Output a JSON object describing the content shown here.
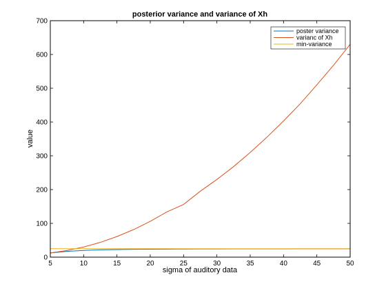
{
  "chart_data": {
    "type": "line",
    "title": "posterior variance and variance of Xh",
    "xlabel": "sigma of auditory data",
    "ylabel": "value",
    "xlim": [
      5,
      50
    ],
    "ylim": [
      0,
      700
    ],
    "xticks": [
      5,
      10,
      15,
      20,
      25,
      30,
      35,
      40,
      45,
      50
    ],
    "yticks": [
      0,
      100,
      200,
      300,
      400,
      500,
      600,
      700
    ],
    "grid": false,
    "legend_position": "top-right",
    "x": [
      5,
      7.5,
      10,
      12.5,
      15,
      17.5,
      20,
      22.5,
      25,
      27.5,
      30,
      32.5,
      35,
      37.5,
      40,
      42.5,
      45,
      47.5,
      50
    ],
    "series": [
      {
        "name": "poster variance",
        "color": "#0072bd",
        "values": [
          12.5,
          17.2,
          20.0,
          21.6,
          22.5,
          23.1,
          23.5,
          23.8,
          24.0,
          24.2,
          24.3,
          24.4,
          24.5,
          24.55,
          24.6,
          24.65,
          24.7,
          24.72,
          24.75
        ]
      },
      {
        "name": "varianc of Xh",
        "color": "#d95319",
        "values": [
          12.5,
          19.6,
          30.0,
          43.8,
          61.0,
          81.6,
          106.0,
          134.0,
          156.0,
          195.0,
          230.0,
          268.0,
          310.0,
          355.0,
          403.0,
          454.0,
          510.0,
          568.0,
          630.0
        ]
      },
      {
        "name": "min-variance",
        "color": "#edb120",
        "values": [
          25,
          25,
          25,
          25,
          25,
          25,
          25,
          25,
          25,
          25,
          25,
          25,
          25,
          25,
          25,
          25,
          25,
          25,
          25
        ]
      }
    ]
  }
}
